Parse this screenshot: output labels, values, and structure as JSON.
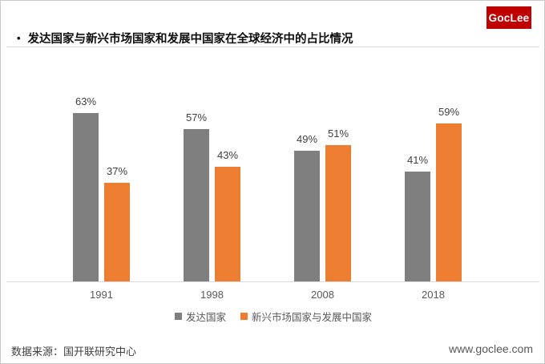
{
  "header": {
    "bullet": "•",
    "title": "发达国家与新兴市场国家和发展中国家在全球经济中的占比情况",
    "logo_text": "GocLee",
    "logo_bg": "#C00000"
  },
  "chart_data": {
    "type": "bar",
    "title": "发达国家与新兴市场国家和发展中国家在全球经济中的占比情况",
    "categories": [
      "1991",
      "1998",
      "2008",
      "2018"
    ],
    "series": [
      {
        "name": "发达国家",
        "color": "#7F7F7F",
        "values": [
          63,
          57,
          49,
          41
        ]
      },
      {
        "name": "新兴市场国家与发展中国家",
        "color": "#ED7D31",
        "values": [
          37,
          43,
          51,
          59
        ]
      }
    ],
    "unit": "%",
    "xlabel": "",
    "ylabel": "",
    "ylim": [
      0,
      70
    ],
    "gridlines": false,
    "value_labels_shown": true,
    "legend_position": "bottom"
  },
  "footer": {
    "source": "数据来源：国开联研究中心",
    "website": "www.goclee.com"
  }
}
